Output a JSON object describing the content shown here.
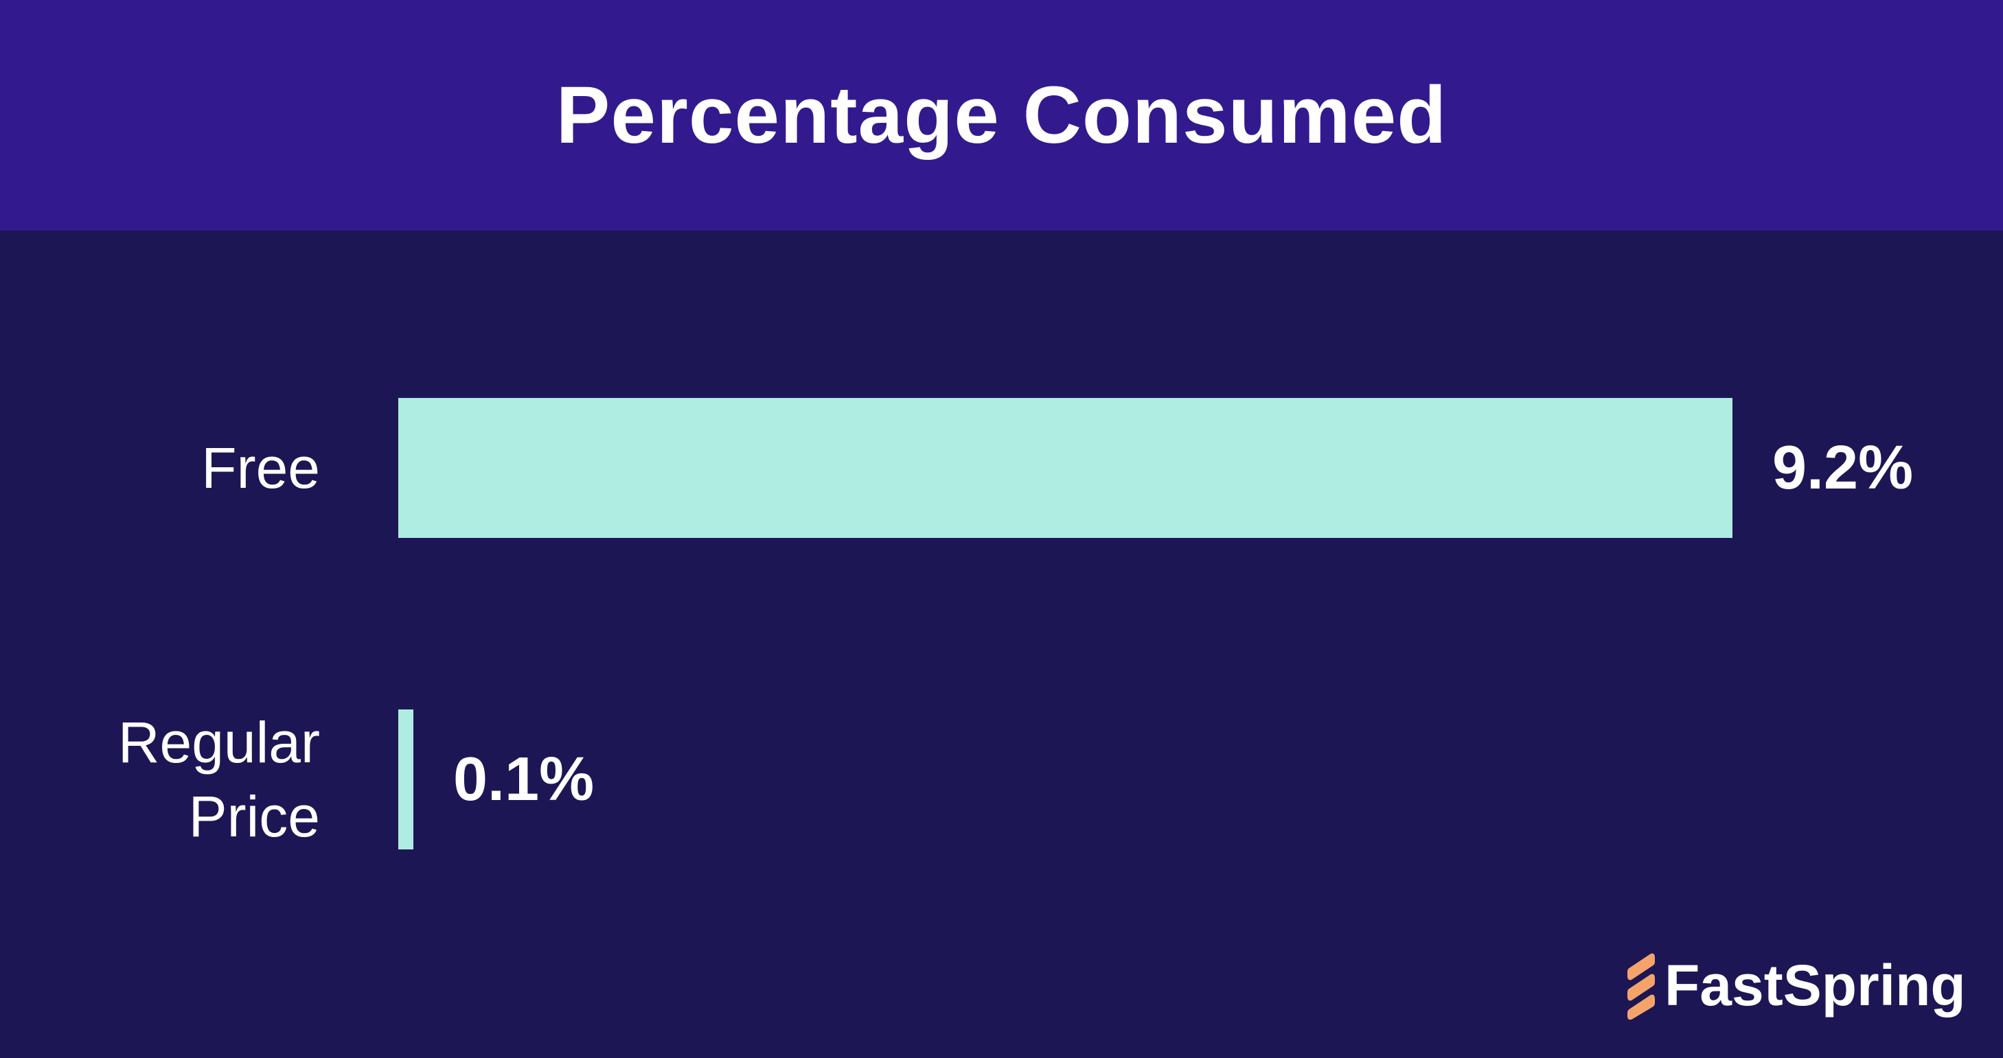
{
  "chart_data": {
    "type": "bar",
    "orientation": "horizontal",
    "title": "Percentage Consumed",
    "categories": [
      "Free",
      "Regular Price"
    ],
    "category_lines": [
      [
        "Free"
      ],
      [
        "Regular",
        "Price"
      ]
    ],
    "values": [
      9.2,
      0.1
    ],
    "value_labels": [
      "9.2%",
      "0.1%"
    ],
    "xlim": [
      0,
      9.2
    ],
    "grid": false,
    "legend": "none"
  },
  "colors": {
    "header_background": "#321a8e",
    "background": "#1d1655",
    "bar": "#afece2",
    "text": "#ffffff",
    "logo_accent": "#f4a46a"
  },
  "brand": {
    "logo_text": "FastSpring",
    "logo_icon": "fastspring-logo-icon"
  }
}
